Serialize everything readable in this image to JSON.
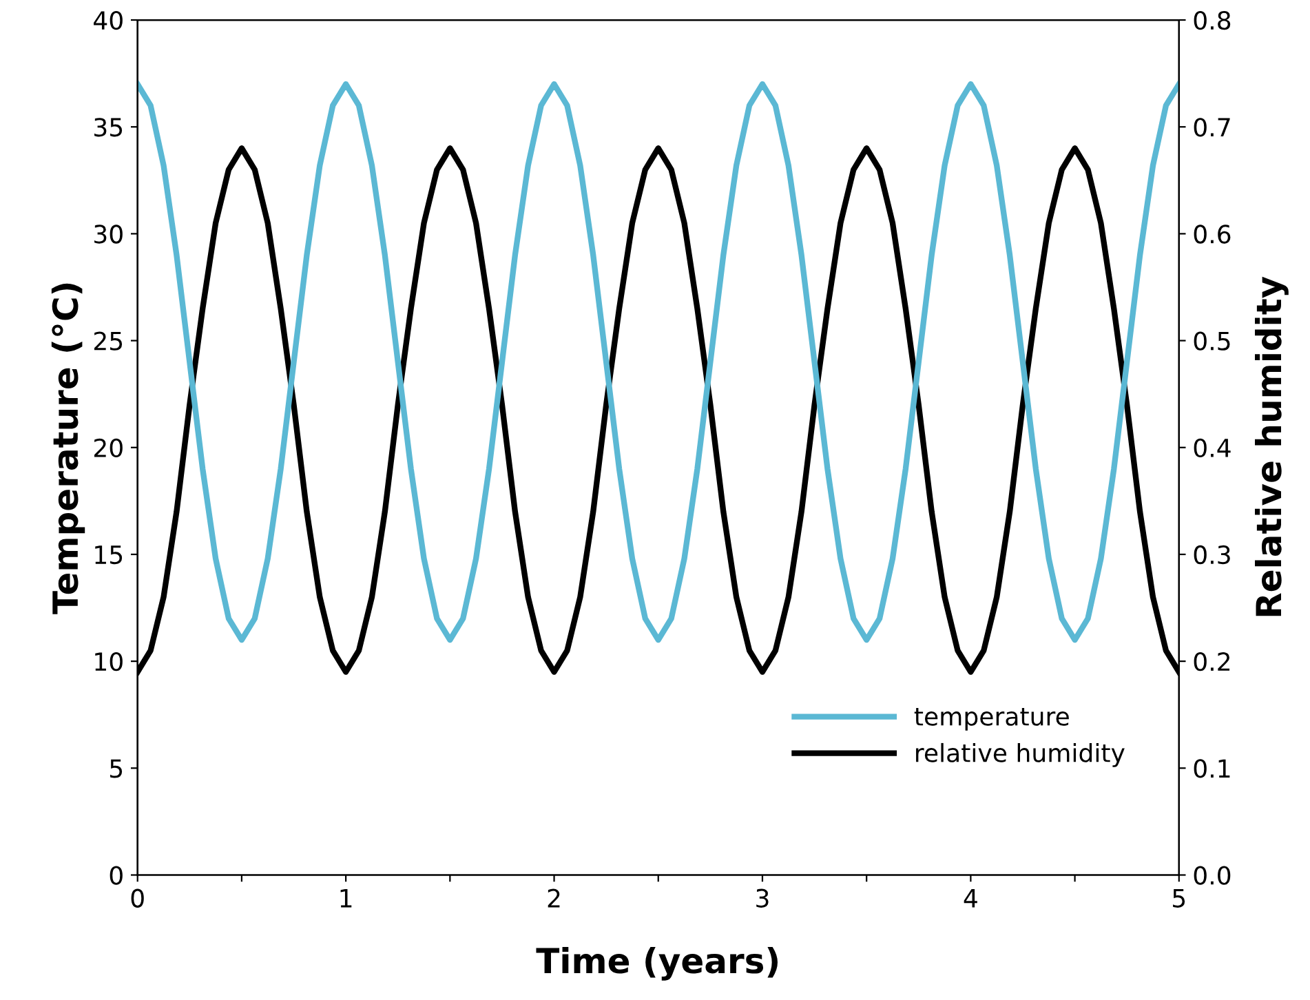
{
  "chart_data": {
    "type": "line",
    "xlabel": "Time (years)",
    "ylabel": "Temperature (°C)",
    "y2label": "Relative humidity",
    "x": [
      0,
      0.0625,
      0.125,
      0.1875,
      0.25,
      0.3125,
      0.375,
      0.4375,
      0.5,
      0.5625,
      0.625,
      0.6875,
      0.75,
      0.8125,
      0.875,
      0.9375,
      1,
      1.0625,
      1.125,
      1.1875,
      1.25,
      1.3125,
      1.375,
      1.4375,
      1.5,
      1.5625,
      1.625,
      1.6875,
      1.75,
      1.8125,
      1.875,
      1.9375,
      2,
      2.0625,
      2.125,
      2.1875,
      2.25,
      2.3125,
      2.375,
      2.4375,
      2.5,
      2.5625,
      2.625,
      2.6875,
      2.75,
      2.8125,
      2.875,
      2.9375,
      3,
      3.0625,
      3.125,
      3.1875,
      3.25,
      3.3125,
      3.375,
      3.4375,
      3.5,
      3.5625,
      3.625,
      3.6875,
      3.75,
      3.8125,
      3.875,
      3.9375,
      4,
      4.0625,
      4.125,
      4.1875,
      4.25,
      4.3125,
      4.375,
      4.4375,
      4.5,
      4.5625,
      4.625,
      4.6875,
      4.75,
      4.8125,
      4.875,
      4.9375,
      5
    ],
    "series": [
      {
        "name": "temperature",
        "color": "#5bb8d4",
        "values": [
          37,
          36.0,
          33.2,
          29.0,
          24,
          19.0,
          14.8,
          12.0,
          11,
          12.0,
          14.8,
          19.0,
          24,
          29.0,
          33.2,
          36.0,
          37,
          36.0,
          33.2,
          29.0,
          24,
          19.0,
          14.8,
          12.0,
          11,
          12.0,
          14.8,
          19.0,
          24,
          29.0,
          33.2,
          36.0,
          37,
          36.0,
          33.2,
          29.0,
          24,
          19.0,
          14.8,
          12.0,
          11,
          12.0,
          14.8,
          19.0,
          24,
          29.0,
          33.2,
          36.0,
          37,
          36.0,
          33.2,
          29.0,
          24,
          19.0,
          14.8,
          12.0,
          11,
          12.0,
          14.8,
          19.0,
          24,
          29.0,
          33.2,
          36.0,
          37,
          36.0,
          33.2,
          29.0,
          24,
          19.0,
          14.8,
          12.0,
          11,
          12.0,
          14.8,
          19.0,
          24,
          29.0,
          33.2,
          36.0,
          37
        ]
      },
      {
        "name": "relative humidity",
        "color": "#000000",
        "axis": "y2",
        "values": [
          0.19,
          0.21,
          0.26,
          0.34,
          0.44,
          0.53,
          0.61,
          0.66,
          0.68,
          0.66,
          0.61,
          0.53,
          0.44,
          0.34,
          0.26,
          0.21,
          0.19,
          0.21,
          0.26,
          0.34,
          0.44,
          0.53,
          0.61,
          0.66,
          0.68,
          0.66,
          0.61,
          0.53,
          0.44,
          0.34,
          0.26,
          0.21,
          0.19,
          0.21,
          0.26,
          0.34,
          0.44,
          0.53,
          0.61,
          0.66,
          0.68,
          0.66,
          0.61,
          0.53,
          0.44,
          0.34,
          0.26,
          0.21,
          0.19,
          0.21,
          0.26,
          0.34,
          0.44,
          0.53,
          0.61,
          0.66,
          0.68,
          0.66,
          0.61,
          0.53,
          0.44,
          0.34,
          0.26,
          0.21,
          0.19,
          0.21,
          0.26,
          0.34,
          0.44,
          0.53,
          0.61,
          0.66,
          0.68,
          0.66,
          0.61,
          0.53,
          0.44,
          0.34,
          0.26,
          0.21,
          0.19
        ]
      }
    ],
    "xlim": [
      0,
      5
    ],
    "xticks": [
      0,
      {
        "value": 0.5,
        "label": null
      },
      1,
      {
        "value": 1.5,
        "label": null
      },
      2,
      {
        "value": 2.5,
        "label": null
      },
      3,
      {
        "value": 3.5,
        "label": null
      },
      4,
      {
        "value": 4.5,
        "label": null
      },
      5
    ],
    "ylim": [
      0,
      40
    ],
    "yticks": [
      0,
      5,
      10,
      15,
      20,
      25,
      30,
      35,
      40
    ],
    "y2lim": [
      0,
      0.8
    ],
    "y2ticks": [
      {
        "value": 0,
        "label": "0.0"
      },
      {
        "value": 0.1,
        "label": "0.1"
      },
      {
        "value": 0.2,
        "label": "0.2"
      },
      {
        "value": 0.3,
        "label": "0.3"
      },
      {
        "value": 0.4,
        "label": "0.4"
      },
      {
        "value": 0.5,
        "label": "0.5"
      },
      {
        "value": 0.6,
        "label": "0.6"
      },
      {
        "value": 0.7,
        "label": "0.7"
      },
      {
        "value": 0.8,
        "label": "0.8"
      }
    ],
    "grid": false,
    "legend": "bottom right",
    "line_style": "solid",
    "marker": "none"
  }
}
